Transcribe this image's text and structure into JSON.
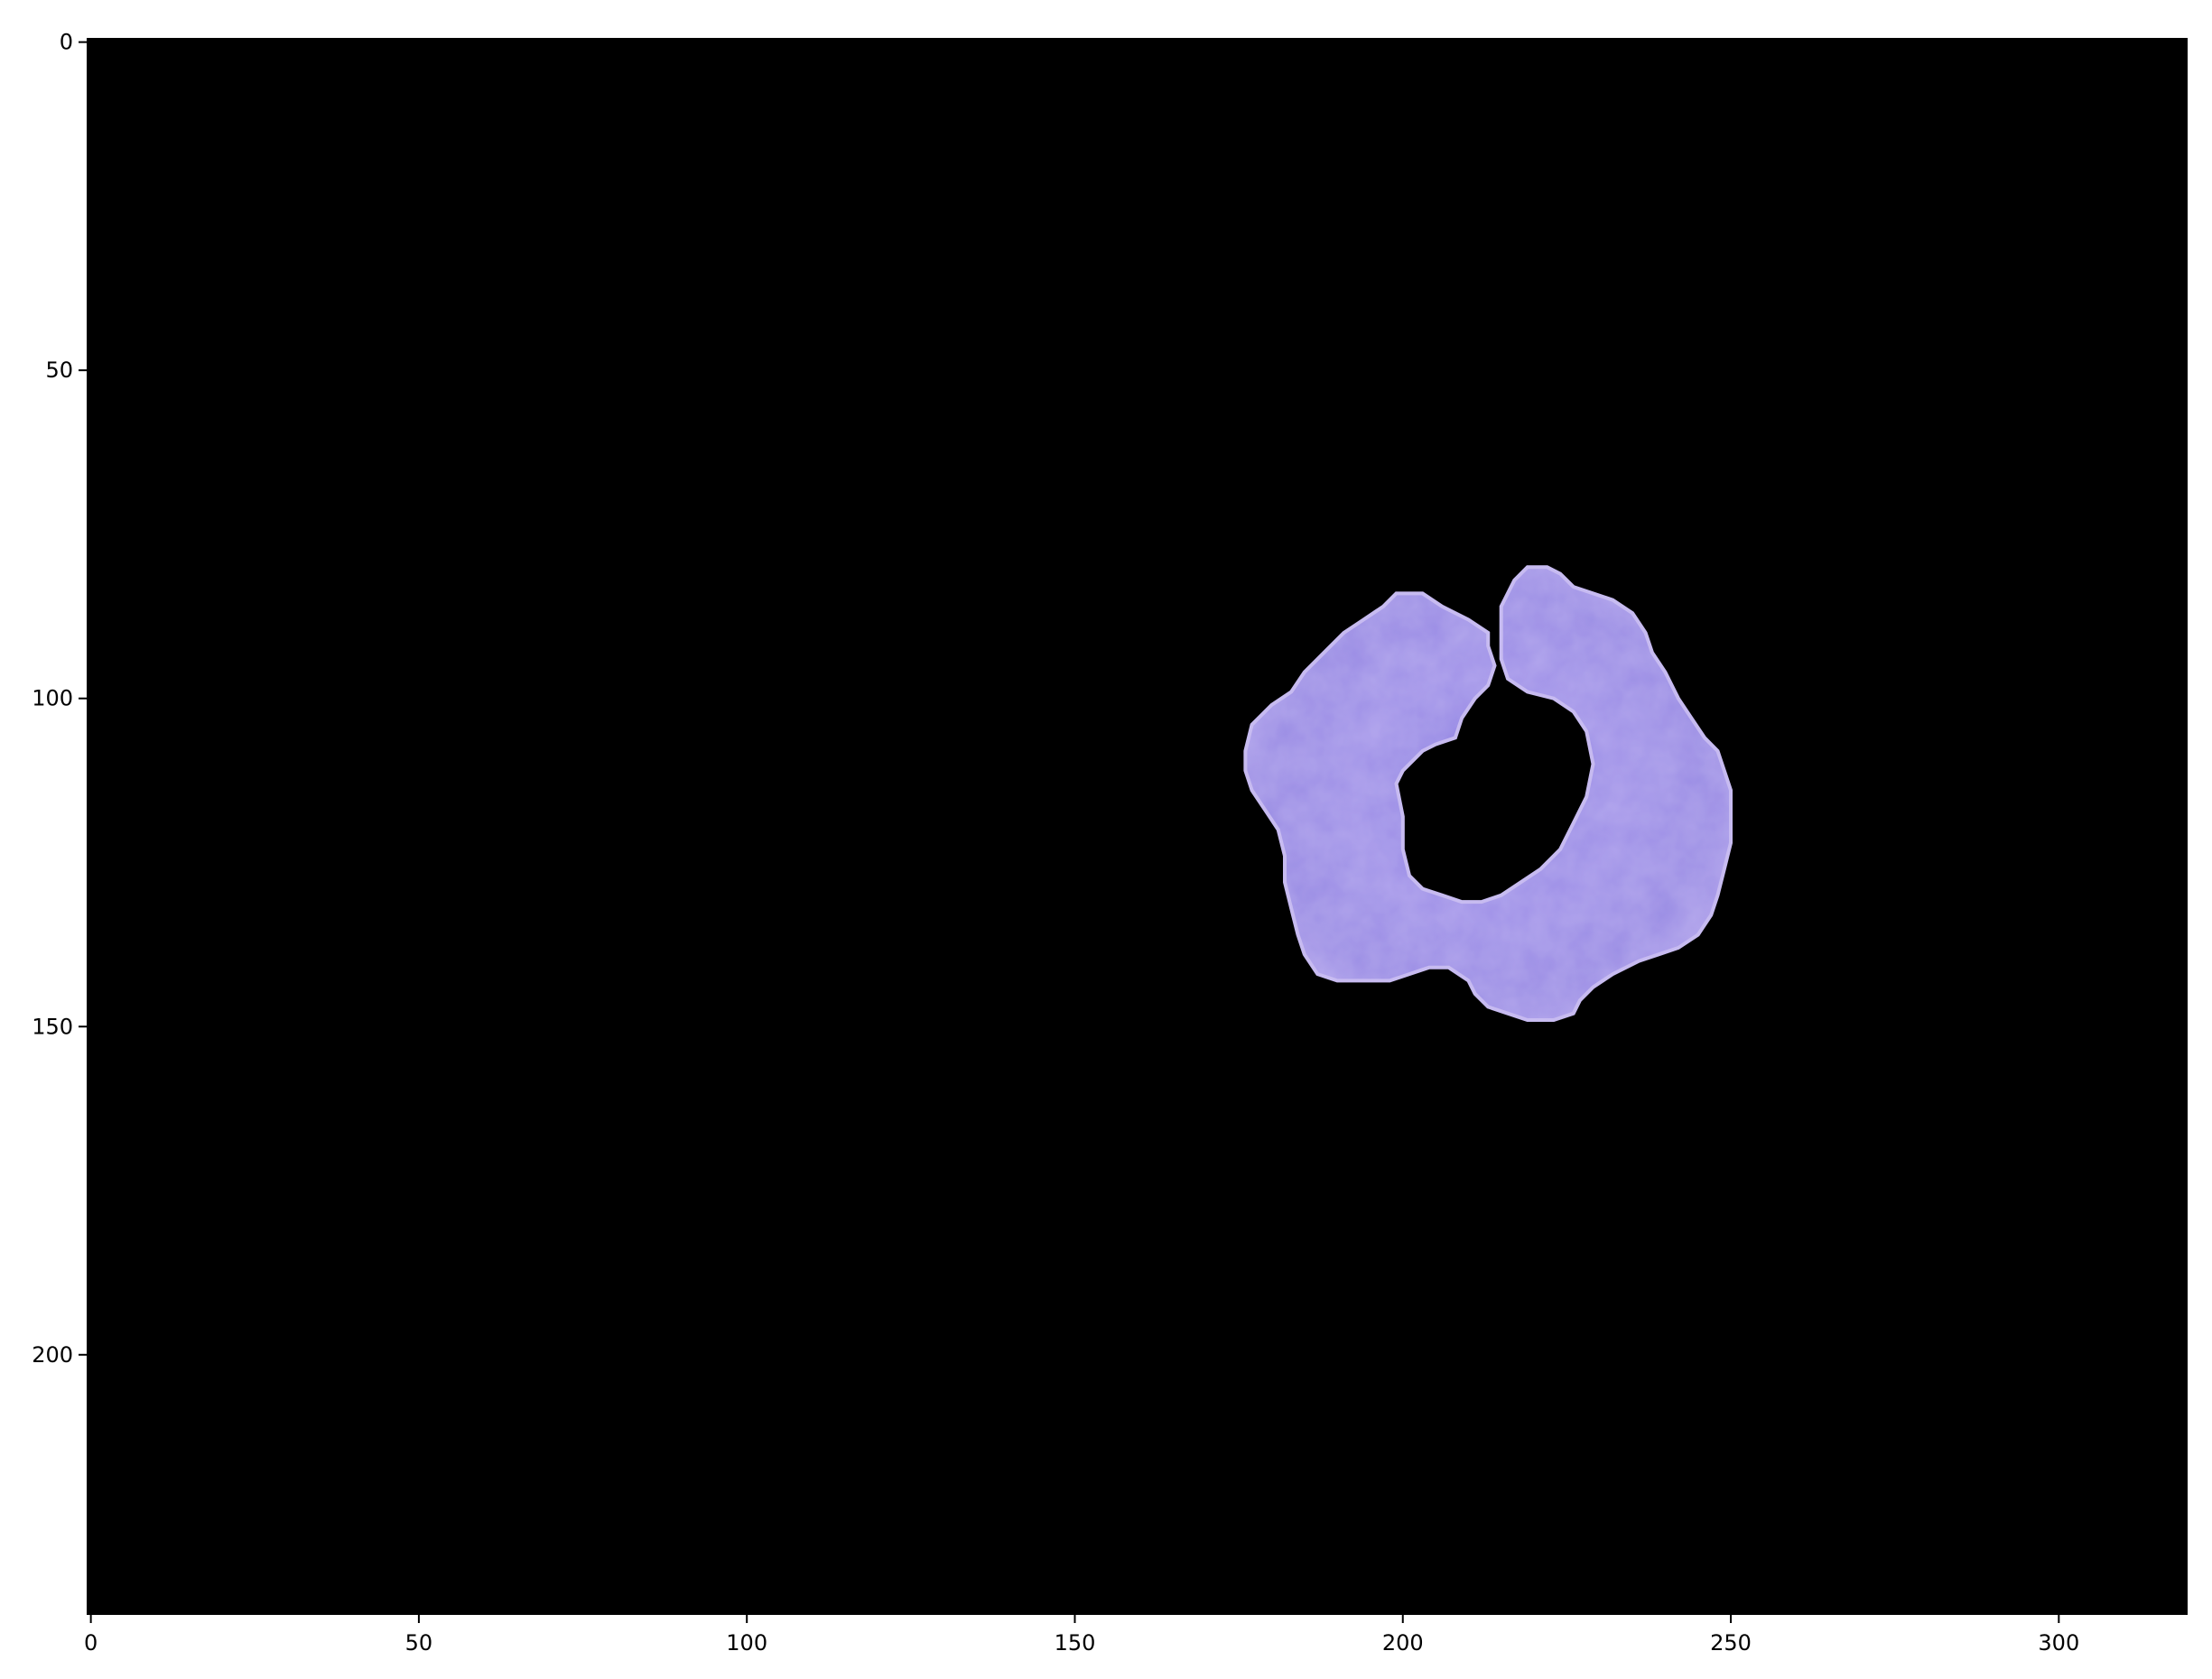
{
  "image": {
    "description_colors": {
      "background": "#000000",
      "cell_fill": "#9b8ee6",
      "cell_highlight": "#b7a9ee",
      "cell_shadow": "#8877dd",
      "frame": "#000000"
    },
    "extent": {
      "x": [
        0,
        320
      ],
      "y": [
        240,
        0
      ]
    }
  },
  "axes": {
    "x_ticks": [
      {
        "value": 0,
        "label": "0"
      },
      {
        "value": 50,
        "label": "50"
      },
      {
        "value": 100,
        "label": "100"
      },
      {
        "value": 150,
        "label": "150"
      },
      {
        "value": 200,
        "label": "200"
      },
      {
        "value": 250,
        "label": "250"
      },
      {
        "value": 300,
        "label": "300"
      }
    ],
    "y_ticks": [
      {
        "value": 0,
        "label": "0"
      },
      {
        "value": 50,
        "label": "50"
      },
      {
        "value": 100,
        "label": "100"
      },
      {
        "value": 150,
        "label": "150"
      },
      {
        "value": 200,
        "label": "200"
      }
    ]
  },
  "cell": {
    "outline": [
      [
        199,
        84
      ],
      [
        203,
        84
      ],
      [
        206,
        86
      ],
      [
        210,
        88
      ],
      [
        213,
        90
      ],
      [
        213,
        92
      ],
      [
        214,
        95
      ],
      [
        213,
        98
      ],
      [
        211,
        100
      ],
      [
        209,
        103
      ],
      [
        208,
        106
      ],
      [
        205,
        107
      ],
      [
        203,
        108
      ],
      [
        200,
        111
      ],
      [
        199,
        113
      ],
      [
        200,
        118
      ],
      [
        200,
        123
      ],
      [
        201,
        127
      ],
      [
        203,
        129
      ],
      [
        206,
        130
      ],
      [
        209,
        131
      ],
      [
        212,
        131
      ],
      [
        215,
        130
      ],
      [
        218,
        128
      ],
      [
        221,
        126
      ],
      [
        224,
        123
      ],
      [
        226,
        119
      ],
      [
        228,
        115
      ],
      [
        229,
        110
      ],
      [
        228,
        105
      ],
      [
        226,
        102
      ],
      [
        223,
        100
      ],
      [
        219,
        99
      ],
      [
        216,
        97
      ],
      [
        215,
        94
      ],
      [
        215,
        90
      ],
      [
        215,
        86
      ],
      [
        217,
        82
      ],
      [
        219,
        80
      ],
      [
        222,
        80
      ],
      [
        224,
        81
      ],
      [
        226,
        83
      ],
      [
        229,
        84
      ],
      [
        232,
        85
      ],
      [
        235,
        87
      ],
      [
        237,
        90
      ],
      [
        238,
        93
      ],
      [
        240,
        96
      ],
      [
        242,
        100
      ],
      [
        244,
        103
      ],
      [
        246,
        106
      ],
      [
        248,
        108
      ],
      [
        249,
        111
      ],
      [
        250,
        114
      ],
      [
        250,
        118
      ],
      [
        250,
        122
      ],
      [
        249,
        126
      ],
      [
        248,
        130
      ],
      [
        247,
        133
      ],
      [
        245,
        136
      ],
      [
        242,
        138
      ],
      [
        239,
        139
      ],
      [
        236,
        140
      ],
      [
        232,
        142
      ],
      [
        229,
        144
      ],
      [
        227,
        146
      ],
      [
        226,
        148
      ],
      [
        223,
        149
      ],
      [
        219,
        149
      ],
      [
        216,
        148
      ],
      [
        213,
        147
      ],
      [
        211,
        145
      ],
      [
        210,
        143
      ],
      [
        207,
        141
      ],
      [
        204,
        141
      ],
      [
        201,
        142
      ],
      [
        198,
        143
      ],
      [
        194,
        143
      ],
      [
        190,
        143
      ],
      [
        187,
        142
      ],
      [
        185,
        139
      ],
      [
        184,
        136
      ],
      [
        183,
        132
      ],
      [
        182,
        128
      ],
      [
        182,
        124
      ],
      [
        181,
        120
      ],
      [
        179,
        117
      ],
      [
        177,
        114
      ],
      [
        176,
        111
      ],
      [
        176,
        108
      ],
      [
        177,
        104
      ],
      [
        180,
        101
      ],
      [
        183,
        99
      ],
      [
        185,
        96
      ],
      [
        188,
        93
      ],
      [
        191,
        90
      ],
      [
        194,
        88
      ],
      [
        197,
        86
      ]
    ]
  }
}
